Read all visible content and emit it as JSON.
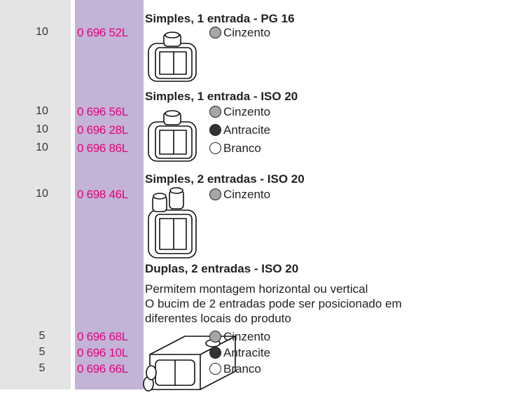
{
  "sections": [
    {
      "title": "Simples, 1 entrada - PG 16",
      "items": [
        {
          "quantity": 10,
          "code": "0 696 52L",
          "color": "Cinzento",
          "swatch": "#a6a6a6"
        }
      ]
    },
    {
      "title": "Simples, 1 entrada - ISO 20",
      "items": [
        {
          "quantity": 10,
          "code": "0 696 56L",
          "color": "Cinzento",
          "swatch": "#a6a6a6"
        },
        {
          "quantity": 10,
          "code": "0 696 28L",
          "color": "Antracite",
          "swatch": "#333333"
        },
        {
          "quantity": 10,
          "code": "0 696 86L",
          "color": "Branco",
          "swatch": "#ffffff"
        }
      ]
    },
    {
      "title": "Simples, 2 entradas - ISO 20",
      "items": [
        {
          "quantity": 10,
          "code": "0 698 46L",
          "color": "Cinzento",
          "swatch": "#a6a6a6"
        }
      ]
    },
    {
      "title": "Duplas, 2 entradas - ISO 20",
      "description": [
        "Permitem montagem horizontal ou vertical",
        "O bucim de 2 entradas pode ser posicionado em",
        "diferentes locais do produto"
      ],
      "items": [
        {
          "quantity": 5,
          "code": "0 696 68L",
          "color": "Cinzento",
          "swatch": "#a6a6a6"
        },
        {
          "quantity": 5,
          "code": "0 696 10L",
          "color": "Antracite",
          "swatch": "#333333"
        },
        {
          "quantity": 5,
          "code": "0 696 66L",
          "color": "Branco",
          "swatch": "#ffffff"
        }
      ]
    }
  ]
}
